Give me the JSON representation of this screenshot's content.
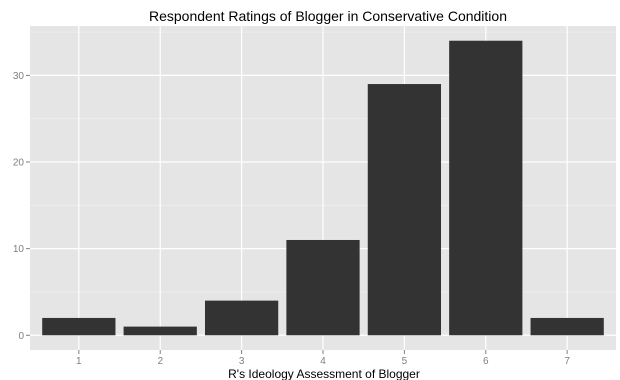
{
  "chart_data": {
    "type": "bar",
    "title": "Respondent Ratings of Blogger in Conservative Condition",
    "xlabel": "R's Ideology Assessment of Blogger",
    "ylabel": "",
    "categories": [
      "1",
      "2",
      "3",
      "4",
      "5",
      "6",
      "7"
    ],
    "values": [
      2,
      1,
      4,
      11,
      29,
      34,
      2
    ],
    "ylim": [
      -1.7,
      35.7
    ],
    "yticks": [
      0,
      10,
      20,
      30
    ],
    "grid": true,
    "colors": {
      "bar": "#333333",
      "panel": "#e5e5e5",
      "grid_major": "#ffffff",
      "grid_minor": "#f2f2f2",
      "tick_text": "#7f7f7f"
    }
  }
}
